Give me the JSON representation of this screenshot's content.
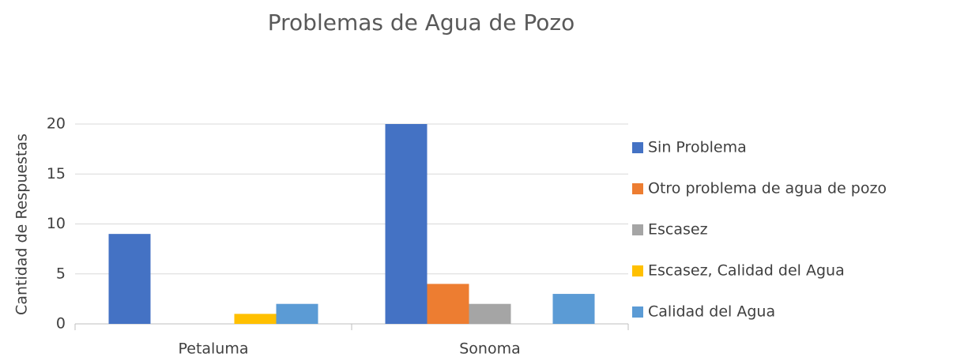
{
  "chart_data": {
    "type": "bar",
    "title": "Problemas de Agua de Pozo",
    "y_label": "Cantidad de Respuestas",
    "categories": [
      "Petaluma",
      "Sonoma"
    ],
    "series": [
      {
        "name": "Sin Problema",
        "color": "#4472c4",
        "values": [
          9,
          20
        ]
      },
      {
        "name": "Otro problema de agua de pozo",
        "color": "#ed7d31",
        "values": [
          0,
          4
        ]
      },
      {
        "name": "Escasez",
        "color": "#a5a5a5",
        "values": [
          0,
          2
        ]
      },
      {
        "name": "Escasez, Calidad del Agua",
        "color": "#ffc000",
        "values": [
          1,
          0
        ]
      },
      {
        "name": "Calidad del Agua",
        "color": "#5b9bd5",
        "values": [
          2,
          3
        ]
      }
    ],
    "ylim": [
      0,
      20
    ],
    "yticks": [
      0,
      5,
      10,
      15,
      20
    ],
    "grid": true,
    "legend": "right"
  }
}
